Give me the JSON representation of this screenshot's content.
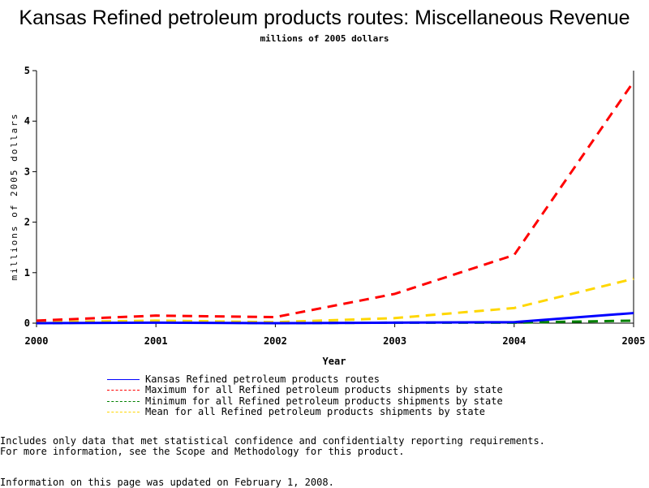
{
  "chart_data": {
    "type": "line",
    "title": "Kansas Refined petroleum products routes: Miscellaneous Revenue",
    "subtitle": "millions of 2005 dollars",
    "xlabel": "Year",
    "ylabel": "millions of 2005 dollars",
    "x": [
      2000,
      2001,
      2002,
      2003,
      2004,
      2005
    ],
    "xticks": [
      "2000",
      "2001",
      "2002",
      "2003",
      "2004",
      "2005"
    ],
    "yticks": [
      "0",
      "1",
      "2",
      "3",
      "4",
      "5"
    ],
    "xlim": [
      2000,
      2005
    ],
    "ylim": [
      0,
      5
    ],
    "grid": false,
    "legend_placement": "bottom",
    "series": [
      {
        "name": "Kansas Refined petroleum products routes",
        "color": "#0000ff",
        "dash": false,
        "values": [
          0.0,
          0.01,
          0.0,
          0.01,
          0.02,
          0.2
        ]
      },
      {
        "name": "Maximum for all Refined petroleum products shipments by state",
        "color": "#ff0000",
        "dash": true,
        "values": [
          0.05,
          0.15,
          0.12,
          0.58,
          1.35,
          4.78
        ]
      },
      {
        "name": "Minimum for all Refined petroleum products shipments by state",
        "color": "#008000",
        "dash": true,
        "values": [
          0.0,
          0.02,
          0.0,
          0.01,
          0.01,
          0.05
        ]
      },
      {
        "name": "Mean for all Refined petroleum products shipments by state",
        "color": "#ffd700",
        "dash": true,
        "values": [
          0.02,
          0.05,
          0.02,
          0.1,
          0.3,
          0.88
        ]
      }
    ]
  },
  "notes": {
    "line1": "Includes only data that met statistical confidence and confidentialty reporting requirements.",
    "line2": "For more information, see the Scope and Methodology for this product.",
    "updated": "Information on this page was updated on February 1, 2008."
  }
}
